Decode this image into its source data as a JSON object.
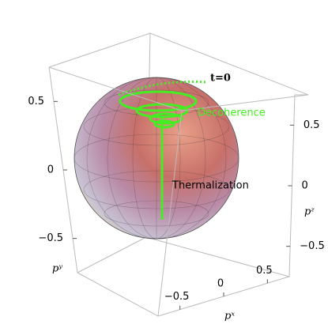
{
  "chart_data": {
    "type": "sphere3d",
    "annotations": [
      "t=0",
      "Decoherence",
      "Thermalization"
    ],
    "xlabel": "pˣ",
    "ylabel": "pʸ",
    "zlabel": "pᶻ",
    "xlim": [
      -0.75,
      0.75
    ],
    "ylim": [
      -0.75,
      0.75
    ],
    "zlim": [
      -0.75,
      0.75
    ],
    "xticks": [
      {
        "value": -0.5,
        "label": "−0.5"
      },
      0,
      0.5
    ],
    "yticks": [
      {
        "value": -0.5,
        "label": "−0.5"
      },
      0,
      0.5
    ],
    "zticks": [
      {
        "value": -0.5,
        "label": "−0.5"
      },
      0,
      0.5
    ],
    "trajectory_color": "#44ee22"
  }
}
